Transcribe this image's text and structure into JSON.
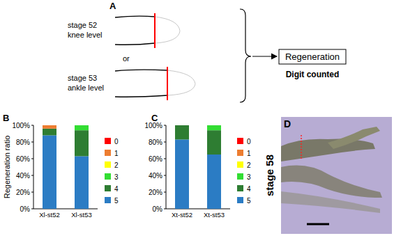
{
  "chart_data": [
    {
      "type": "bar",
      "title": "B",
      "y_label": "Regeneration ratio",
      "stacked": true,
      "legend": "right",
      "categories": [
        "Xl-st52",
        "Xl-st53"
      ],
      "ylim": [
        0,
        100
      ],
      "yticks": [
        {
          "value": 0,
          "label": "0%"
        },
        {
          "value": 20,
          "label": "20%"
        },
        {
          "value": 40,
          "label": "40%"
        },
        {
          "value": 60,
          "label": "60%"
        },
        {
          "value": 80,
          "label": "80%"
        },
        {
          "value": 100,
          "label": "100%"
        }
      ],
      "series": [
        {
          "name": "0",
          "color": "#ff0000",
          "values": [
            0,
            0
          ]
        },
        {
          "name": "1",
          "color": "#ed7d31",
          "values": [
            4,
            0
          ]
        },
        {
          "name": "2",
          "color": "#ffff00",
          "values": [
            0,
            0
          ]
        },
        {
          "name": "3",
          "color": "#33dd33",
          "values": [
            0,
            6
          ]
        },
        {
          "name": "4",
          "color": "#2e7d32",
          "values": [
            8,
            31
          ]
        },
        {
          "name": "5",
          "color": "#2b7cc4",
          "values": [
            88,
            63
          ]
        }
      ]
    },
    {
      "type": "bar",
      "title": "C",
      "stacked": true,
      "legend": "right",
      "categories": [
        "Xt-st52",
        "Xt-st53"
      ],
      "ylim": [
        0,
        100
      ],
      "yticks": [
        {
          "value": 0,
          "label": "0%"
        },
        {
          "value": 20,
          "label": "20%"
        },
        {
          "value": 40,
          "label": "40%"
        },
        {
          "value": 60,
          "label": "60%"
        },
        {
          "value": 80,
          "label": "80%"
        },
        {
          "value": 100,
          "label": "100%"
        }
      ],
      "series": [
        {
          "name": "0",
          "color": "#ff0000",
          "values": [
            0,
            0
          ]
        },
        {
          "name": "1",
          "color": "#ed7d31",
          "values": [
            0,
            0
          ]
        },
        {
          "name": "2",
          "color": "#ffff00",
          "values": [
            0,
            0
          ]
        },
        {
          "name": "3",
          "color": "#33dd33",
          "values": [
            0,
            6
          ]
        },
        {
          "name": "4",
          "color": "#2e7d32",
          "values": [
            17,
            29
          ]
        },
        {
          "name": "5",
          "color": "#2b7cc4",
          "values": [
            83,
            65
          ]
        }
      ]
    }
  ],
  "diagram": {
    "label": "A",
    "steps": [
      {
        "stage": "stage 52",
        "level": "knee level"
      },
      {
        "stage": "stage 53",
        "level": "ankle level"
      }
    ],
    "connector": "or",
    "result": {
      "title": "Regeneration",
      "subtitle": "Digit counted"
    }
  },
  "image": {
    "label": "D",
    "caption": "stage 58"
  }
}
